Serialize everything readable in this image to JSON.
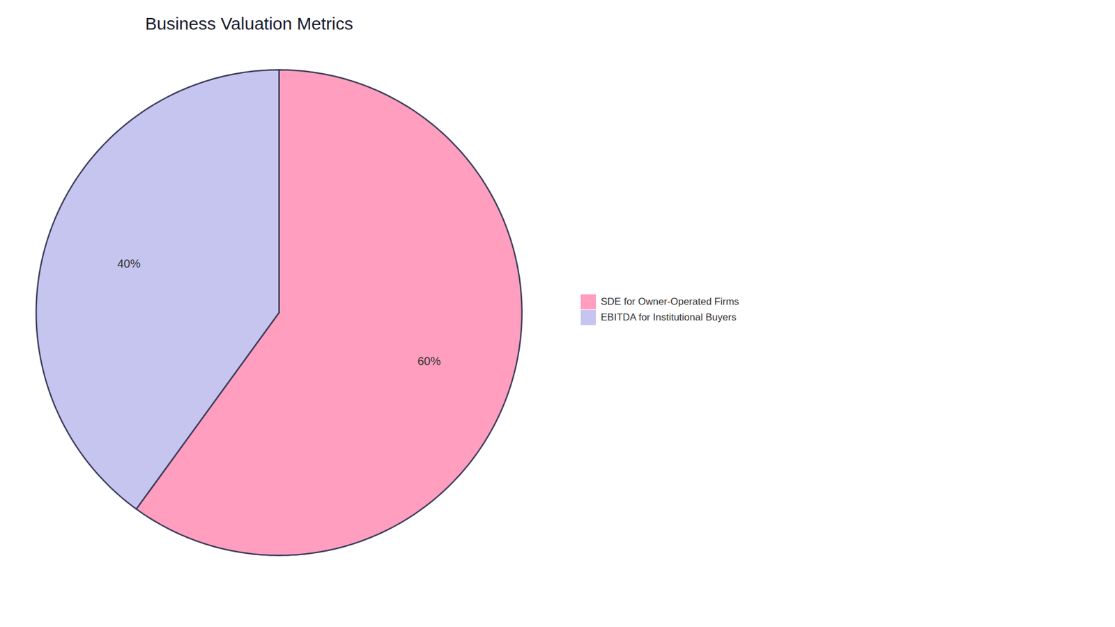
{
  "chart_data": {
    "type": "pie",
    "title": "Business Valuation Metrics",
    "categories": [
      "SDE for Owner-Operated Firms",
      "EBITDA for Institutional Buyers"
    ],
    "values": [
      60,
      40
    ],
    "value_labels": [
      "60%",
      "40%"
    ],
    "colors": [
      "#FF9EBE",
      "#C5C5F0"
    ],
    "data_labels": true,
    "legend": "right"
  }
}
